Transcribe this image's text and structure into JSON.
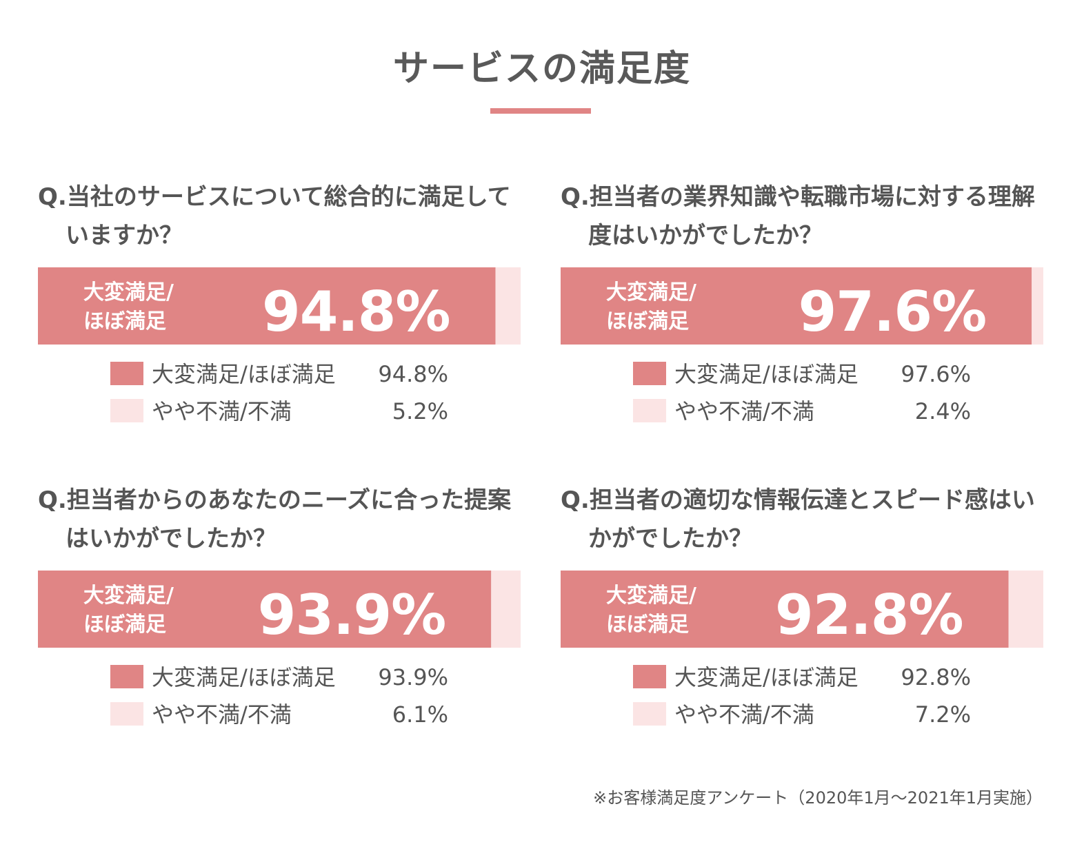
{
  "title": "サービスの満足度",
  "colors": {
    "accent": "#e08585",
    "light": "#fbe4e4"
  },
  "legend_labels": {
    "satisfied": "大変満足/ほぼ満足",
    "unsatisfied": "やや不満/不満"
  },
  "bar_label_lines": [
    "大変満足/",
    "ほぼ満足"
  ],
  "footnote": "※お客様満足度アンケート（2020年1月〜2021年1月実施）",
  "chart_data": [
    {
      "type": "bar",
      "stacked": true,
      "orientation": "horizontal",
      "question": "Q.当社のサービスについて総合的に満足していますか？",
      "categories": [
        "大変満足/ほぼ満足",
        "やや不満/不満"
      ],
      "values": [
        94.8,
        5.2
      ],
      "display_values": [
        "94.8%",
        "5.2%"
      ],
      "xlim": [
        0,
        100
      ]
    },
    {
      "type": "bar",
      "stacked": true,
      "orientation": "horizontal",
      "question": "Q.担当者の業界知識や転職市場に対する理解度はいかがでしたか？",
      "categories": [
        "大変満足/ほぼ満足",
        "やや不満/不満"
      ],
      "values": [
        97.6,
        2.4
      ],
      "display_values": [
        "97.6%",
        "2.4%"
      ],
      "xlim": [
        0,
        100
      ]
    },
    {
      "type": "bar",
      "stacked": true,
      "orientation": "horizontal",
      "question": "Q.担当者からのあなたのニーズに合った提案はいかがでしたか？",
      "categories": [
        "大変満足/ほぼ満足",
        "やや不満/不満"
      ],
      "values": [
        93.9,
        6.1
      ],
      "display_values": [
        "93.9%",
        "6.1%"
      ],
      "xlim": [
        0,
        100
      ]
    },
    {
      "type": "bar",
      "stacked": true,
      "orientation": "horizontal",
      "question": "Q.担当者の適切な情報伝達とスピード感はいかがでしたか？",
      "categories": [
        "大変満足/ほぼ満足",
        "やや不満/不満"
      ],
      "values": [
        92.8,
        7.2
      ],
      "display_values": [
        "92.8%",
        "7.2%"
      ],
      "xlim": [
        0,
        100
      ]
    }
  ]
}
